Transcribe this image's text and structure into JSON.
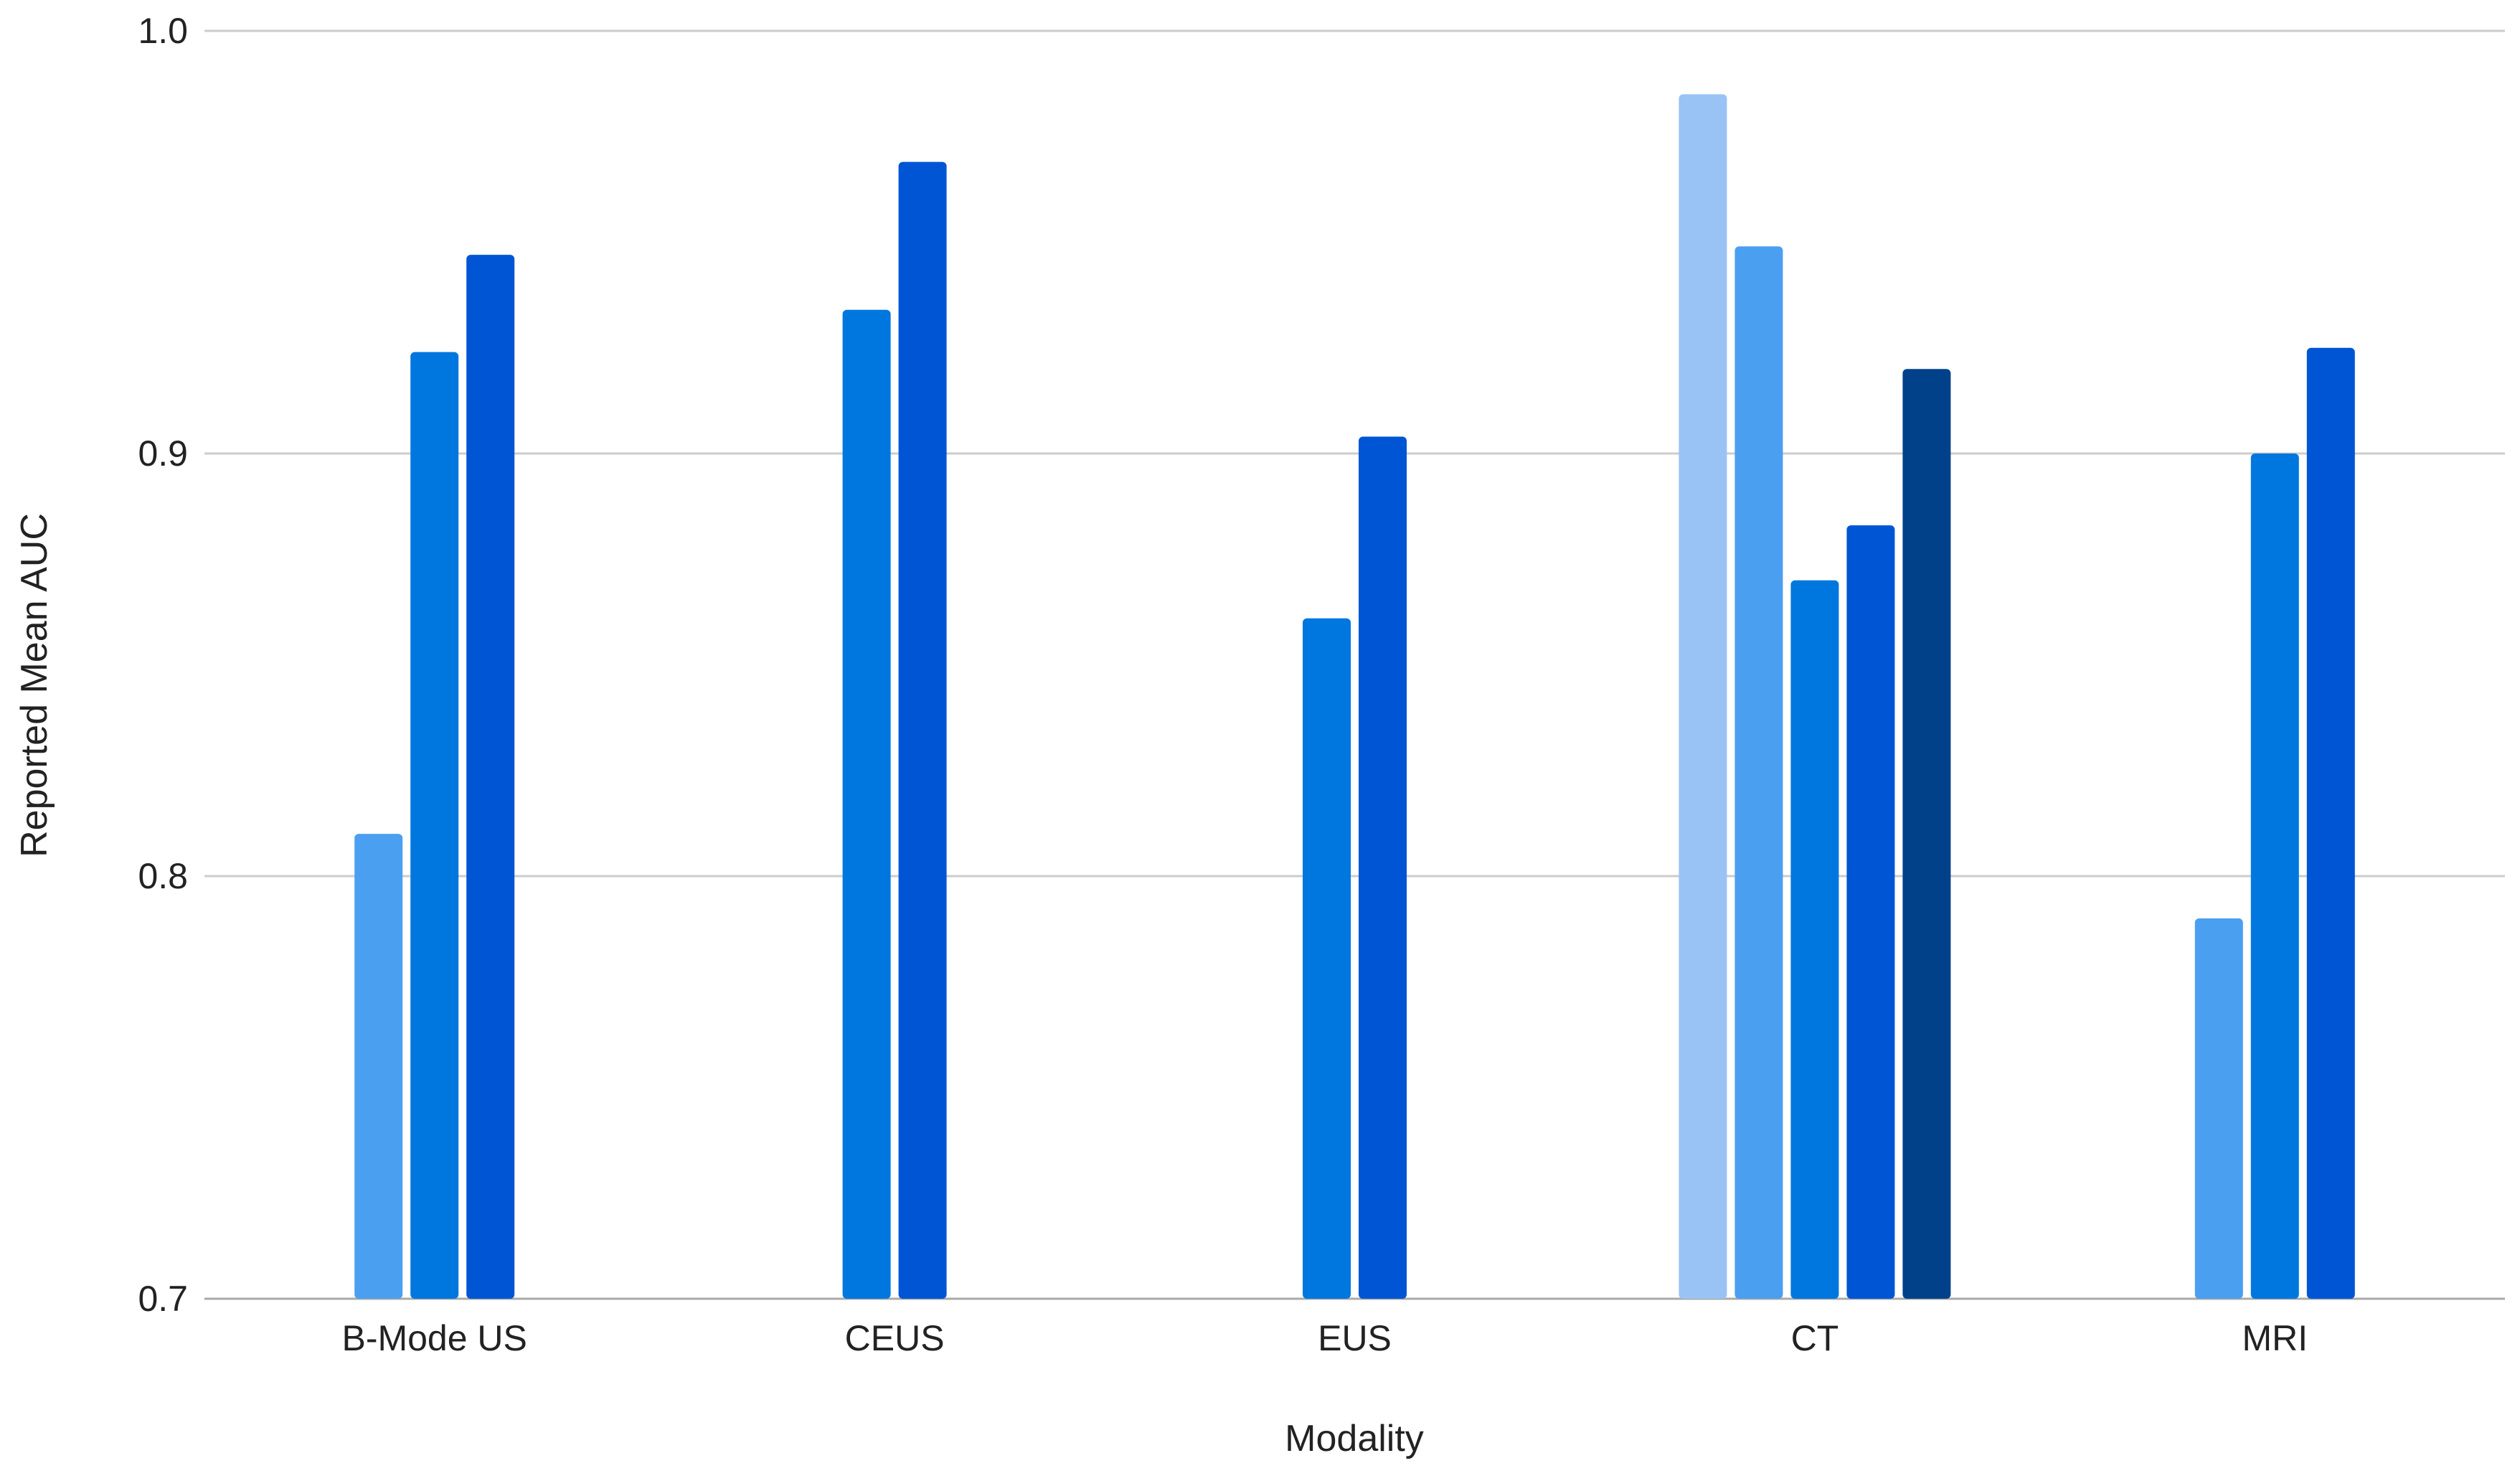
{
  "chart_data": {
    "type": "bar",
    "title": "",
    "xlabel": "Modality",
    "ylabel": "Reported Mean AUC",
    "categories": [
      "B-Mode US",
      "CEUS",
      "EUS",
      "CT",
      "MRI"
    ],
    "y_ticks": [
      "0.7",
      "0.8",
      "0.9",
      "1.0"
    ],
    "ylim": [
      0.7,
      1.0
    ],
    "grid": true,
    "legend": "none",
    "groups": [
      {
        "category": "B-Mode US",
        "values": [
          0.81,
          0.924,
          0.947
        ],
        "colors": [
          "#4a9ff0",
          "#0077de",
          "#0055d4"
        ]
      },
      {
        "category": "CEUS",
        "values": [
          0.934,
          0.969
        ],
        "colors": [
          "#0077de",
          "#0055d4"
        ]
      },
      {
        "category": "EUS",
        "values": [
          0.861,
          0.904
        ],
        "colors": [
          "#0077de",
          "#0055d4"
        ]
      },
      {
        "category": "CT",
        "values": [
          0.985,
          0.949,
          0.87,
          0.883,
          0.92
        ],
        "colors": [
          "#99c3f5",
          "#4a9ff0",
          "#0077de",
          "#0055d4",
          "#00418a"
        ]
      },
      {
        "category": "MRI",
        "values": [
          0.79,
          0.9,
          0.925
        ],
        "colors": [
          "#4a9ff0",
          "#0077de",
          "#0055d4"
        ]
      }
    ]
  }
}
